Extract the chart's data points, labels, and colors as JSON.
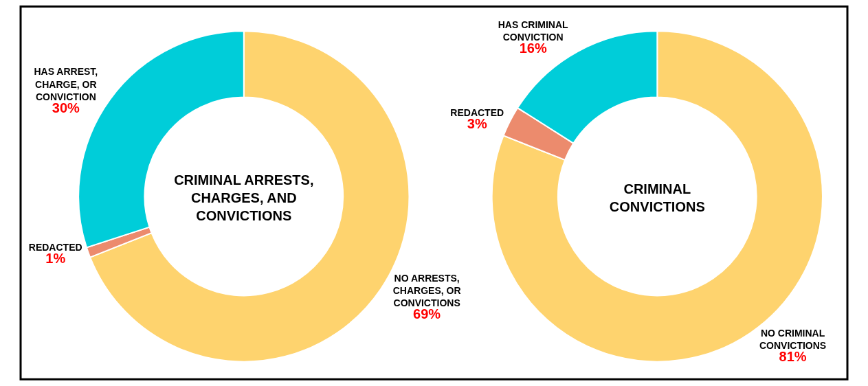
{
  "chart_data": [
    {
      "type": "donut",
      "title": "CRIMINAL ARRESTS,\nCHARGES, AND\nCONVICTIONS",
      "categories": [
        "NO ARRESTS,\nCHARGES, OR\nCONVICTIONS",
        "REDACTED",
        "HAS ARREST,\nCHARGE, OR\nCONVICTION"
      ],
      "values": [
        69,
        1,
        30
      ],
      "value_labels": [
        "69%",
        "1%",
        "30%"
      ],
      "colors": [
        "#fed36e",
        "#ec8b6d",
        "#00cdd9"
      ]
    },
    {
      "type": "donut",
      "title": "CRIMINAL\nCONVICTIONS",
      "categories": [
        "NO CRIMINAL\nCONVICTIONS",
        "REDACTED",
        "HAS CRIMINAL\nCONVICTION"
      ],
      "values": [
        81,
        3,
        16
      ],
      "value_labels": [
        "81%",
        "3%",
        "16%"
      ],
      "colors": [
        "#fed36e",
        "#ec8b6d",
        "#00cdd9"
      ]
    }
  ]
}
